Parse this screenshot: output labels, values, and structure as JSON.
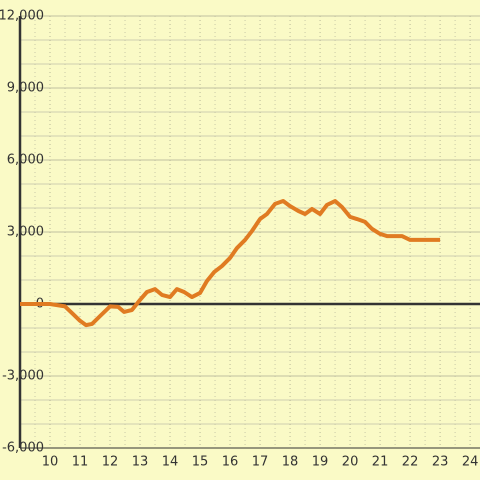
{
  "chart_data": {
    "type": "line",
    "x": [
      9,
      10,
      10.5,
      10.75,
      11,
      11.2,
      11.4,
      11.67,
      12,
      12.27,
      12.47,
      12.73,
      13,
      13.23,
      13.5,
      13.73,
      14,
      14.23,
      14.47,
      14.73,
      15,
      15.23,
      15.47,
      15.73,
      16,
      16.23,
      16.5,
      16.73,
      17,
      17.23,
      17.5,
      17.77,
      18,
      18.27,
      18.5,
      18.73,
      19,
      19.23,
      19.5,
      19.73,
      20,
      20.23,
      20.5,
      20.73,
      21,
      21.23,
      21.5,
      21.73,
      22,
      22.5,
      23
    ],
    "series": [
      {
        "color": "#e07b22",
        "values": [
          0,
          0,
          -100,
          -400,
          -700,
          -880,
          -830,
          -500,
          -100,
          -120,
          -330,
          -250,
          170,
          500,
          620,
          380,
          290,
          620,
          500,
          290,
          460,
          960,
          1330,
          1580,
          1920,
          2330,
          2670,
          3040,
          3540,
          3750,
          4170,
          4290,
          4080,
          3880,
          3750,
          3960,
          3750,
          4130,
          4290,
          4040,
          3630,
          3540,
          3420,
          3130,
          2920,
          2830,
          2830,
          2830,
          2670,
          2670,
          2670
        ]
      }
    ],
    "xlim": [
      9,
      24.33
    ],
    "xticks": [
      10,
      11,
      12,
      13,
      14,
      15,
      16,
      17,
      18,
      19,
      20,
      21,
      22,
      23,
      24
    ],
    "x_minor_ticks": [
      9.5,
      10.5,
      11.5,
      12.5,
      13.5,
      14.5,
      15.5,
      16.5,
      17.5,
      18.5,
      19.5,
      20.5,
      21.5,
      22.5,
      23.5
    ],
    "ylim": [
      -6000,
      12000
    ],
    "yticks": [
      {
        "value": -6000,
        "label": "-6,000"
      },
      {
        "value": -3000,
        "label": "-3,000"
      },
      0,
      {
        "value": 3000,
        "label": "3,000"
      },
      {
        "value": 6000,
        "label": "6,000"
      },
      {
        "value": 9000,
        "label": "9,000"
      },
      {
        "value": 12000,
        "label": "12,000"
      }
    ],
    "y_minor_ticks": [
      -5000,
      -4000,
      -2000,
      -1000,
      1000,
      2000,
      4000,
      5000,
      7000,
      8000,
      10000,
      11000
    ],
    "grid": true
  }
}
